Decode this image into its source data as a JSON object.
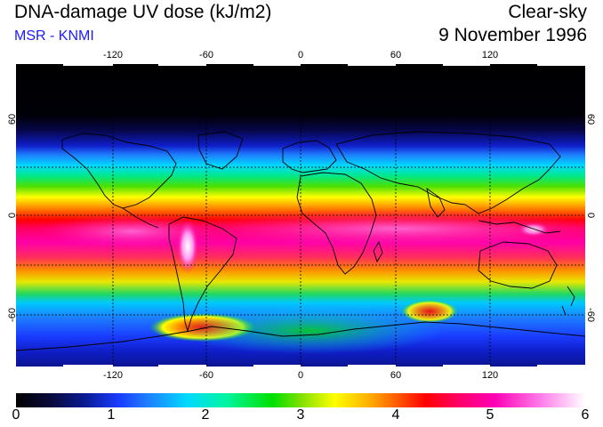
{
  "header": {
    "title": "DNA-damage UV dose (kJ/m2)",
    "subtitle": "MSR - KNMI",
    "condition": "Clear-sky",
    "date": "9 November 1996"
  },
  "axes": {
    "longitude_ticks": [
      "-120",
      "-60",
      "0",
      "60",
      "120"
    ],
    "latitude_ticks_left": [
      "60",
      "0",
      "-60"
    ],
    "latitude_ticks_right": [
      "60",
      "0",
      "-60"
    ]
  },
  "colorbar": {
    "labels": [
      "0",
      "1",
      "2",
      "3",
      "4",
      "5",
      "6"
    ],
    "min": 0,
    "max": 6
  },
  "colors": {
    "subtitle": "#1a1aff",
    "coastline": "#000000",
    "grid": "#000000"
  }
}
